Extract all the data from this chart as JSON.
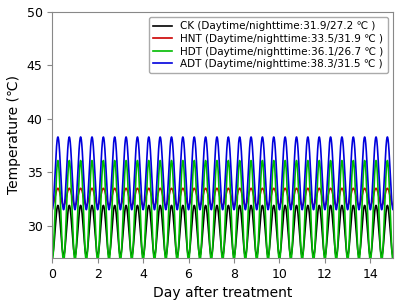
{
  "series": [
    {
      "label": "CK (Daytime/nighttime:31.9/27.2 ℃ )",
      "color": "#000000",
      "day_temp": 31.9,
      "night_temp": 27.2
    },
    {
      "label": "HNT (Daytime/nighttime:33.5/31.9 ℃ )",
      "color": "#cc0000",
      "day_temp": 33.5,
      "night_temp": 31.9
    },
    {
      "label": "HDT (Daytime/nighttime:36.1/26.7 ℃ )",
      "color": "#00bb00",
      "day_temp": 36.1,
      "night_temp": 26.7
    },
    {
      "label": "ADT (Daytime/nighttime:38.3/31.5 ℃ )",
      "color": "#0000dd",
      "day_temp": 38.3,
      "night_temp": 31.5
    }
  ],
  "xlim": [
    0,
    15
  ],
  "ylim": [
    27,
    50
  ],
  "xlabel": "Day after treatment",
  "ylabel": "Temperature (℃)",
  "yticks": [
    30,
    35,
    40,
    45,
    50
  ],
  "xticks": [
    0,
    2,
    4,
    6,
    8,
    10,
    12,
    14
  ],
  "n_points": 5000,
  "cycles_per_day": 2.0,
  "phase_shift": 0.25,
  "legend_loc": "upper right",
  "legend_fontsize": 7.5,
  "axis_fontsize": 10,
  "tick_fontsize": 9,
  "linewidth": 1.2
}
